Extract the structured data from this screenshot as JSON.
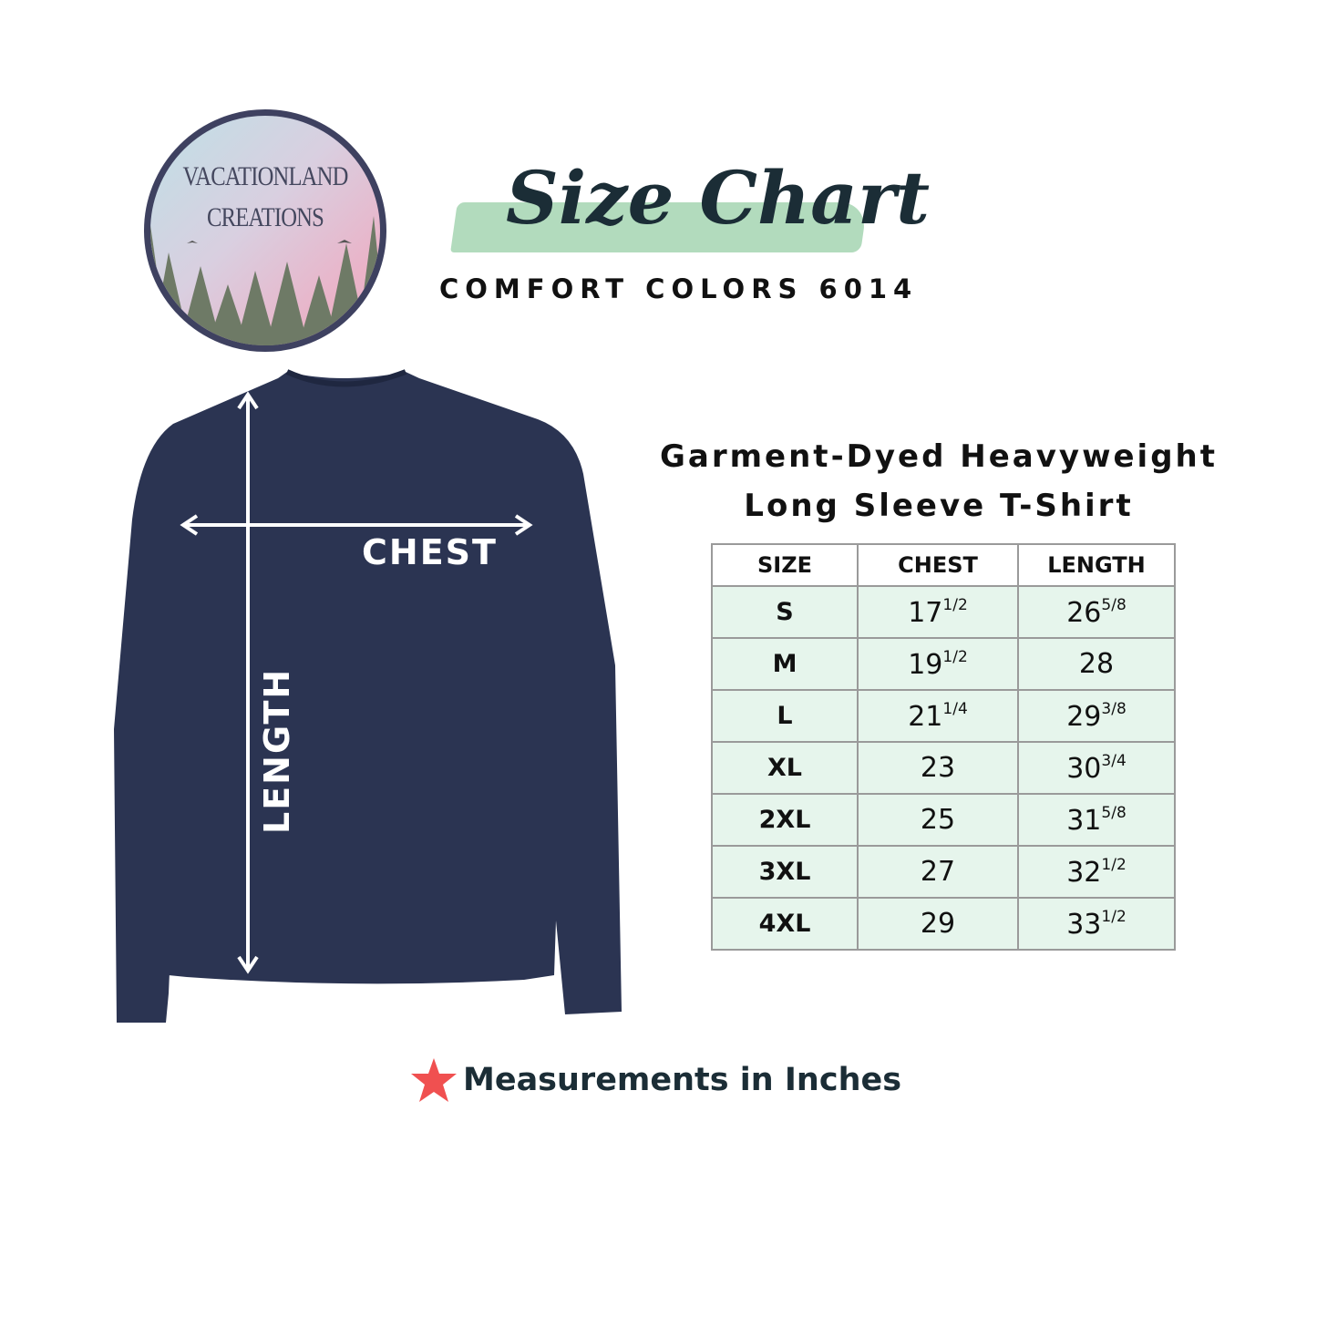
{
  "logo": {
    "line1": "VACATIONLAND",
    "line2": "CREATIONS"
  },
  "header": {
    "title": "Size Chart",
    "subtitle": "COMFORT COLORS 6014"
  },
  "product": {
    "line1": "Garment-Dyed Heavyweight",
    "line2": "Long Sleeve T-Shirt"
  },
  "diagram": {
    "chest_label": "CHEST",
    "length_label": "LENGTH",
    "shirt_color": "#2b3452"
  },
  "table": {
    "headers": [
      "SIZE",
      "CHEST",
      "LENGTH"
    ],
    "rows": [
      {
        "size": "S",
        "chest": "17",
        "chest_frac": "1/2",
        "length": "26",
        "length_frac": "5/8"
      },
      {
        "size": "M",
        "chest": "19",
        "chest_frac": "1/2",
        "length": "28",
        "length_frac": ""
      },
      {
        "size": "L",
        "chest": "21",
        "chest_frac": "1/4",
        "length": "29",
        "length_frac": "3/8"
      },
      {
        "size": "XL",
        "chest": "23",
        "chest_frac": "",
        "length": "30",
        "length_frac": "3/4"
      },
      {
        "size": "2XL",
        "chest": "25",
        "chest_frac": "",
        "length": "31",
        "length_frac": "5/8"
      },
      {
        "size": "3XL",
        "chest": "27",
        "chest_frac": "",
        "length": "32",
        "length_frac": "1/2"
      },
      {
        "size": "4XL",
        "chest": "29",
        "chest_frac": "",
        "length": "33",
        "length_frac": "1/2"
      }
    ],
    "row_color": "#e6f5ec"
  },
  "note": {
    "icon": "star-icon",
    "text": "Measurements in Inches",
    "star_color": "#f05050"
  }
}
